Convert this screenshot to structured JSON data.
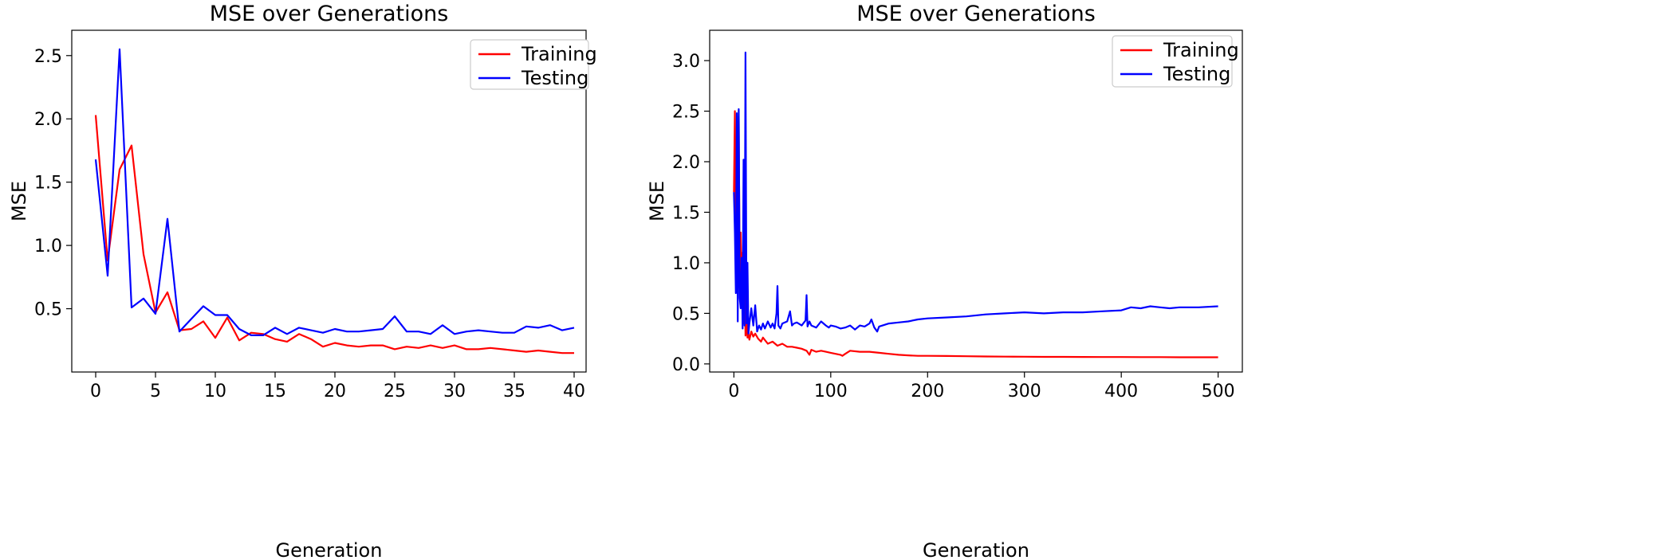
{
  "chart_data": [
    {
      "type": "line",
      "title": "MSE over Generations",
      "xlabel": "Generation",
      "ylabel": "MSE",
      "xlim": [
        -2,
        41
      ],
      "ylim": [
        0.0,
        2.7
      ],
      "xticks": [
        0,
        5,
        10,
        15,
        20,
        25,
        30,
        35,
        40
      ],
      "xtick_labels": [
        "0",
        "5",
        "10",
        "15",
        "20",
        "25",
        "30",
        "35",
        "40"
      ],
      "yticks": [
        0.5,
        1.0,
        1.5,
        2.0,
        2.5
      ],
      "ytick_labels": [
        "0.5",
        "1.0",
        "1.5",
        "2.0",
        "2.5"
      ],
      "legend_position": "top-right",
      "series": [
        {
          "name": "Training",
          "color": "#ff0000",
          "x": [
            0,
            1,
            2,
            3,
            4,
            5,
            6,
            7,
            8,
            9,
            10,
            11,
            12,
            13,
            14,
            15,
            16,
            17,
            18,
            19,
            20,
            21,
            22,
            23,
            24,
            25,
            26,
            27,
            28,
            29,
            30,
            31,
            32,
            33,
            34,
            35,
            36,
            37,
            38,
            39,
            40
          ],
          "values": [
            2.03,
            0.88,
            1.6,
            1.79,
            0.93,
            0.47,
            0.63,
            0.33,
            0.34,
            0.4,
            0.27,
            0.43,
            0.25,
            0.31,
            0.3,
            0.26,
            0.24,
            0.3,
            0.26,
            0.2,
            0.23,
            0.21,
            0.2,
            0.21,
            0.21,
            0.18,
            0.2,
            0.19,
            0.21,
            0.19,
            0.21,
            0.18,
            0.18,
            0.19,
            0.18,
            0.17,
            0.16,
            0.17,
            0.16,
            0.15,
            0.15
          ]
        },
        {
          "name": "Testing",
          "color": "#0000ff",
          "x": [
            0,
            1,
            2,
            3,
            4,
            5,
            6,
            7,
            8,
            9,
            10,
            11,
            12,
            13,
            14,
            15,
            16,
            17,
            18,
            19,
            20,
            21,
            22,
            23,
            24,
            25,
            26,
            27,
            28,
            29,
            30,
            31,
            32,
            33,
            34,
            35,
            36,
            37,
            38,
            39,
            40
          ],
          "values": [
            1.68,
            0.76,
            2.55,
            0.51,
            0.58,
            0.46,
            1.21,
            0.32,
            0.42,
            0.52,
            0.45,
            0.45,
            0.34,
            0.29,
            0.29,
            0.35,
            0.3,
            0.35,
            0.33,
            0.31,
            0.34,
            0.32,
            0.32,
            0.33,
            0.34,
            0.44,
            0.32,
            0.32,
            0.3,
            0.37,
            0.3,
            0.32,
            0.33,
            0.32,
            0.31,
            0.31,
            0.36,
            0.35,
            0.37,
            0.33,
            0.35
          ]
        }
      ]
    },
    {
      "type": "line",
      "title": "MSE over Generations",
      "xlabel": "Generation",
      "ylabel": "MSE",
      "xlim": [
        -25,
        525
      ],
      "ylim": [
        -0.08,
        3.3
      ],
      "xticks": [
        0,
        100,
        200,
        300,
        400,
        500
      ],
      "xtick_labels": [
        "0",
        "100",
        "200",
        "300",
        "400",
        "500"
      ],
      "yticks": [
        0.0,
        0.5,
        1.0,
        1.5,
        2.0,
        2.5,
        3.0
      ],
      "ytick_labels": [
        "0.0",
        "0.5",
        "1.0",
        "1.5",
        "2.0",
        "2.5",
        "3.0"
      ],
      "legend_position": "top-right",
      "series": [
        {
          "name": "Training",
          "color": "#ff0000",
          "x": [
            0,
            1,
            2,
            3,
            4,
            5,
            6,
            7,
            8,
            9,
            10,
            11,
            12,
            13,
            14,
            15,
            16,
            18,
            20,
            22,
            25,
            28,
            30,
            35,
            40,
            45,
            50,
            55,
            60,
            65,
            70,
            75,
            78,
            80,
            85,
            90,
            95,
            100,
            105,
            110,
            112,
            115,
            120,
            130,
            140,
            150,
            160,
            170,
            180,
            190,
            200,
            220,
            240,
            260,
            280,
            300,
            320,
            340,
            360,
            380,
            400,
            420,
            440,
            460,
            480,
            500
          ],
          "values": [
            1.7,
            2.5,
            1.2,
            2.2,
            0.9,
            2.45,
            0.75,
            1.3,
            0.8,
            1.1,
            0.4,
            1.3,
            0.28,
            0.45,
            0.26,
            0.3,
            0.24,
            0.32,
            0.27,
            0.3,
            0.25,
            0.22,
            0.26,
            0.2,
            0.22,
            0.18,
            0.2,
            0.17,
            0.17,
            0.16,
            0.15,
            0.13,
            0.09,
            0.14,
            0.12,
            0.13,
            0.12,
            0.11,
            0.1,
            0.09,
            0.08,
            0.1,
            0.13,
            0.12,
            0.12,
            0.11,
            0.1,
            0.09,
            0.085,
            0.08,
            0.08,
            0.078,
            0.076,
            0.074,
            0.072,
            0.071,
            0.07,
            0.07,
            0.069,
            0.068,
            0.068,
            0.067,
            0.067,
            0.066,
            0.066,
            0.066
          ]
        },
        {
          "name": "Testing",
          "color": "#0000ff",
          "x": [
            0,
            1,
            2,
            3,
            4,
            5,
            6,
            7,
            8,
            9,
            10,
            11,
            12,
            13,
            14,
            15,
            16,
            18,
            20,
            22,
            24,
            26,
            28,
            30,
            32,
            35,
            38,
            40,
            42,
            44,
            45,
            46,
            48,
            50,
            55,
            58,
            60,
            62,
            65,
            70,
            74,
            75,
            76,
            78,
            80,
            85,
            90,
            95,
            98,
            100,
            105,
            110,
            115,
            120,
            125,
            130,
            135,
            140,
            142,
            145,
            148,
            150,
            160,
            170,
            180,
            190,
            200,
            220,
            240,
            260,
            280,
            300,
            320,
            340,
            360,
            380,
            400,
            410,
            420,
            430,
            440,
            450,
            460,
            480,
            500
          ],
          "values": [
            1.7,
            1.3,
            0.7,
            2.48,
            0.42,
            2.52,
            0.65,
            0.55,
            1.05,
            0.35,
            2.02,
            0.38,
            3.08,
            0.4,
            1.0,
            0.3,
            0.4,
            0.55,
            0.38,
            0.58,
            0.32,
            0.38,
            0.34,
            0.4,
            0.35,
            0.42,
            0.36,
            0.4,
            0.35,
            0.5,
            0.77,
            0.38,
            0.35,
            0.4,
            0.42,
            0.52,
            0.38,
            0.4,
            0.41,
            0.38,
            0.43,
            0.68,
            0.37,
            0.42,
            0.38,
            0.36,
            0.42,
            0.38,
            0.36,
            0.38,
            0.37,
            0.35,
            0.36,
            0.38,
            0.34,
            0.38,
            0.37,
            0.4,
            0.44,
            0.36,
            0.32,
            0.37,
            0.4,
            0.41,
            0.42,
            0.44,
            0.45,
            0.46,
            0.47,
            0.49,
            0.5,
            0.51,
            0.5,
            0.51,
            0.51,
            0.52,
            0.53,
            0.56,
            0.55,
            0.57,
            0.56,
            0.55,
            0.56,
            0.56,
            0.57
          ]
        }
      ]
    }
  ]
}
